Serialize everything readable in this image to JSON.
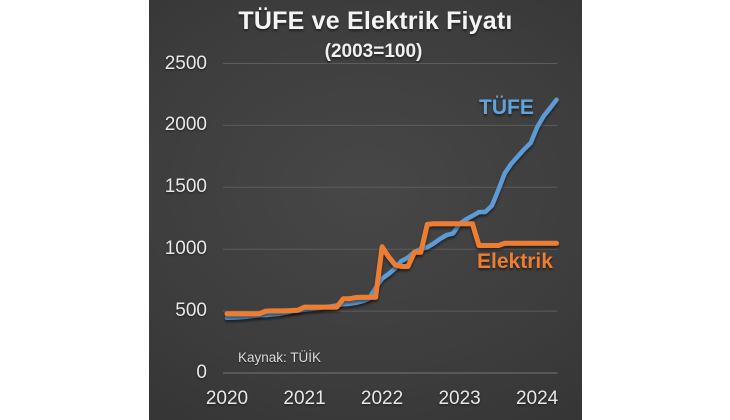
{
  "chart_data": {
    "type": "line",
    "title": "TÜFE ve Elektrik Fiyatı",
    "subtitle": "(2003=100)",
    "source": "Kaynak: TÜİK",
    "x_start": "2020-01",
    "x_end": "2024-04",
    "x_tick_labels": [
      "2020",
      "2021",
      "2022",
      "2023",
      "2024"
    ],
    "x_tick_month_index": [
      0,
      12,
      24,
      36,
      48
    ],
    "y_ticks": [
      0,
      500,
      1000,
      1500,
      2000,
      2500
    ],
    "ylim": [
      0,
      2500
    ],
    "grid": "horizontal-only",
    "legend_position": "inline-labels",
    "colors": {
      "background_center": "#474747",
      "background_edge": "#2b2b2b",
      "grid": "#5c5c5c",
      "axis": "#757575",
      "tick_text": "#e8e8e8",
      "title_text": "#f4f4f4",
      "tufe": "#5b9bd5",
      "tufe_label": "#62a3de",
      "elektrik": "#ed7d31"
    },
    "series": [
      {
        "name": "TÜFE",
        "color": "#5b9bd5",
        "values": [
          446,
          448,
          450,
          454,
          461,
          466,
          468,
          473,
          477,
          487,
          498,
          505,
          513,
          518,
          524,
          532,
          537,
          547,
          556,
          560,
          568,
          581,
          601,
          687,
          763,
          800,
          844,
          905,
          932,
          978,
          1001,
          1016,
          1047,
          1084,
          1115,
          1128,
          1204,
          1241,
          1270,
          1300,
          1301,
          1352,
          1480,
          1614,
          1691,
          1749,
          1807,
          1859,
          1984,
          2074,
          2139,
          2207
        ]
      },
      {
        "name": "Elektrik",
        "color": "#ed7d31",
        "values": [
          478,
          478,
          478,
          478,
          478,
          478,
          500,
          502,
          502,
          502,
          505,
          508,
          532,
          532,
          532,
          532,
          532,
          532,
          600,
          600,
          610,
          612,
          612,
          612,
          1020,
          940,
          875,
          860,
          860,
          975,
          975,
          1200,
          1205,
          1205,
          1205,
          1205,
          1205,
          1205,
          1205,
          1030,
          1030,
          1030,
          1030,
          1048,
          1048,
          1048,
          1048,
          1048,
          1048,
          1048,
          1048,
          1048
        ]
      }
    ]
  }
}
